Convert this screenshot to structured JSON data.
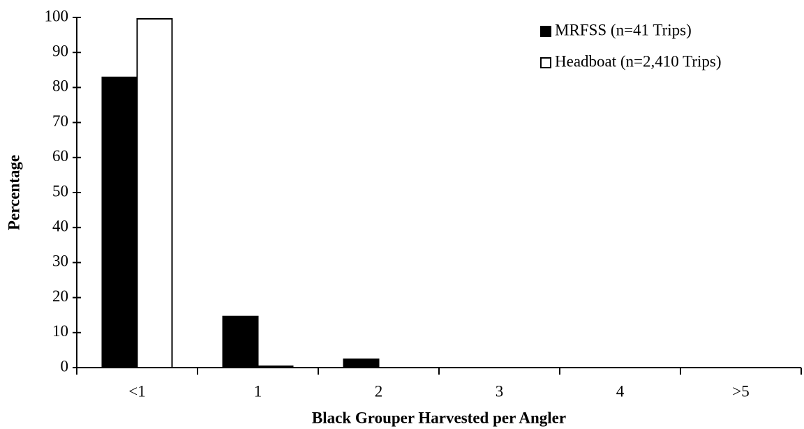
{
  "chart_data": {
    "type": "bar",
    "x_label": "Black Grouper Harvested per Angler",
    "y_label": "Percentage",
    "categories": [
      "<1",
      "1",
      "2",
      "3",
      "4",
      ">5"
    ],
    "series": [
      {
        "name": "MRFSS (n=41 Trips)",
        "color": "#000000",
        "values": [
          82.9,
          14.6,
          2.4,
          0,
          0,
          0
        ]
      },
      {
        "name": "Headboat (n=2,410 Trips)",
        "color": "#ffffff",
        "values": [
          99.6,
          0.4,
          0,
          0,
          0,
          0
        ]
      }
    ],
    "ylim": [
      0,
      100
    ],
    "yticks": [
      0,
      10,
      20,
      30,
      40,
      50,
      60,
      70,
      80,
      90,
      100
    ],
    "legend": "top-right",
    "grid": false
  }
}
